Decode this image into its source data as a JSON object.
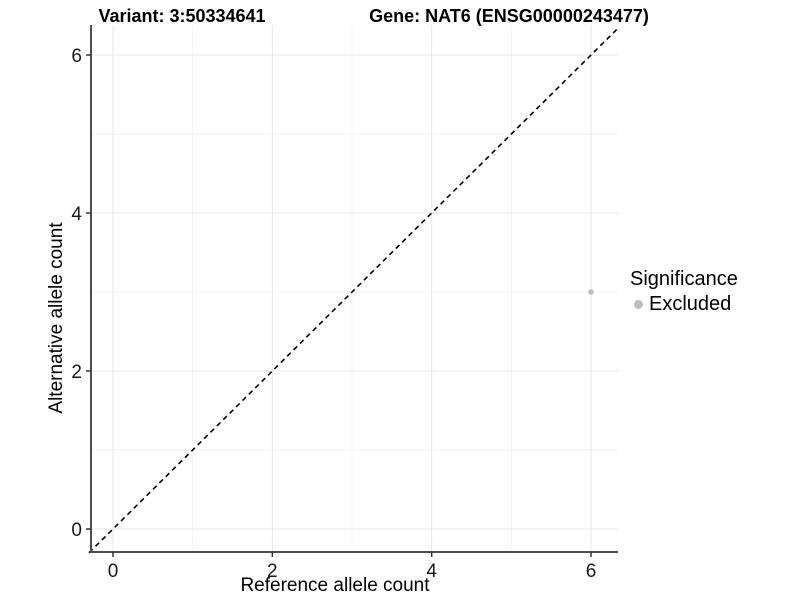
{
  "header": {
    "variant_title": "Variant: 3:50334641",
    "gene_title": "Gene: NAT6 (ENSG00000243477)"
  },
  "chart_data": {
    "type": "scatter",
    "title_left": "Variant: 3:50334641",
    "title_right": "Gene: NAT6 (ENSG00000243477)",
    "xlabel": "Reference allele count",
    "ylabel": "Alternative allele count",
    "xlim": [
      -0.3,
      6.35
    ],
    "ylim": [
      -0.3,
      6.4
    ],
    "x_ticks": [
      0,
      2,
      4,
      6
    ],
    "y_ticks": [
      0,
      2,
      4,
      6
    ],
    "x_minor_ticks": [
      1,
      3,
      5
    ],
    "y_minor_ticks": [
      1,
      3,
      5
    ],
    "grid": "on",
    "identity_line": {
      "kind": "y=x",
      "style": "dashed",
      "color": "#000000"
    },
    "series": [
      {
        "name": "Excluded",
        "color": "#bebebe",
        "points": [
          {
            "x": 6,
            "y": 3
          }
        ]
      }
    ],
    "legend": {
      "title": "Significance",
      "position": "right",
      "items": [
        {
          "label": "Excluded",
          "color": "#bebebe"
        }
      ]
    },
    "colors": {
      "grid_major": "#e7e7e7",
      "grid_minor": "#f3f3f3",
      "axis_line": "#4d4d4d",
      "tick_mark": "#333333",
      "point": "#bebebe",
      "dashed_line": "#000000"
    }
  }
}
